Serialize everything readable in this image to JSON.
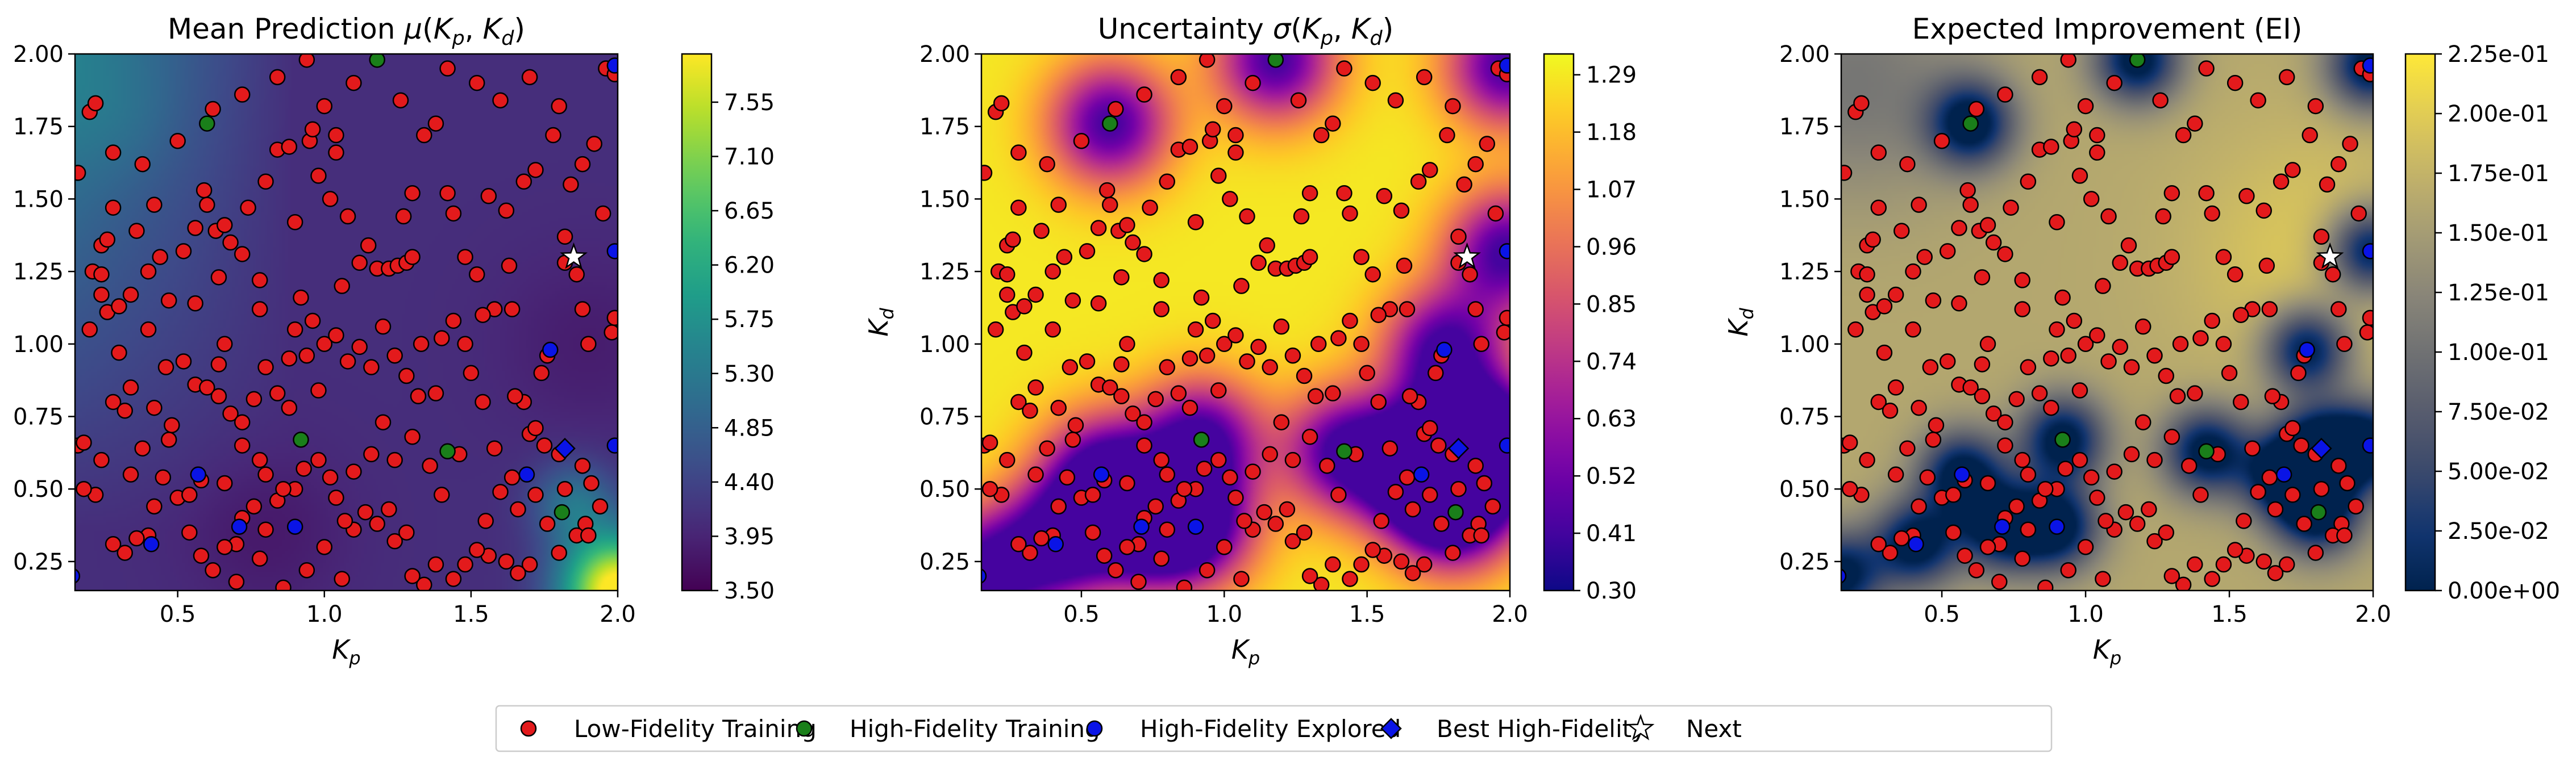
{
  "figure": {
    "legend": {
      "placement": "bottom-center",
      "items": [
        {
          "label": "Low-Fidelity Training",
          "marker": "circle",
          "color": "#e31a1c"
        },
        {
          "label": "High-Fidelity Training",
          "marker": "circle",
          "color": "#1a7f1a"
        },
        {
          "label": "High-Fidelity Explored",
          "marker": "circle",
          "color": "#0a14e6"
        },
        {
          "label": "Best High-Fidelity",
          "marker": "diamond",
          "color": "#0a14e6"
        },
        {
          "label": "Next",
          "marker": "star",
          "color": "#ffffff"
        }
      ]
    }
  },
  "chart_data": [
    {
      "type": "heatmap",
      "title": "Mean Prediction μ(Kp, Kd)",
      "title_parts": [
        "Mean Prediction ",
        "μ",
        "(",
        "K",
        "p",
        ", ",
        "K",
        "d",
        ")"
      ],
      "xlabel": "Kp",
      "ylabel": "Kd",
      "xlim": [
        0.15,
        2.0
      ],
      "ylim": [
        0.15,
        2.0
      ],
      "xticks": [
        "0.5",
        "1.0",
        "1.5",
        "2.0"
      ],
      "yticks": [
        "0.25",
        "0.50",
        "0.75",
        "1.00",
        "1.25",
        "1.50",
        "1.75",
        "2.00"
      ],
      "colormap": "viridis",
      "colorbar_ticks": [
        "3.50",
        "3.95",
        "4.40",
        "4.85",
        "5.30",
        "5.75",
        "6.20",
        "6.65",
        "7.10",
        "7.55"
      ],
      "colorbar_range": [
        3.5,
        7.95
      ]
    },
    {
      "type": "heatmap",
      "title": "Uncertainty σ(Kp, Kd)",
      "title_parts": [
        "Uncertainty ",
        "σ",
        "(",
        "K",
        "p",
        ", ",
        "K",
        "d",
        ")"
      ],
      "xlabel": "Kp",
      "ylabel": "Kd",
      "xlim": [
        0.15,
        2.0
      ],
      "ylim": [
        0.15,
        2.0
      ],
      "xticks": [
        "0.5",
        "1.0",
        "1.5",
        "2.0"
      ],
      "yticks": [
        "0.25",
        "0.50",
        "0.75",
        "1.00",
        "1.25",
        "1.50",
        "1.75",
        "2.00"
      ],
      "colormap": "plasma",
      "colorbar_ticks": [
        "0.30",
        "0.41",
        "0.52",
        "0.63",
        "0.74",
        "0.85",
        "0.96",
        "1.07",
        "1.18",
        "1.29"
      ],
      "colorbar_range": [
        0.3,
        1.33
      ]
    },
    {
      "type": "heatmap",
      "title": "Expected Improvement (EI)",
      "title_parts": [
        "Expected Improvement (EI)"
      ],
      "xlabel": "Kp",
      "ylabel": "Kd",
      "xlim": [
        0.15,
        2.0
      ],
      "ylim": [
        0.15,
        2.0
      ],
      "xticks": [
        "0.5",
        "1.0",
        "1.5",
        "2.0"
      ],
      "yticks": [
        "0.25",
        "0.50",
        "0.75",
        "1.00",
        "1.25",
        "1.50",
        "1.75",
        "2.00"
      ],
      "colormap": "cividis",
      "colorbar_ticks": [
        "0.00e+00",
        "2.50e-02",
        "5.00e-02",
        "7.50e-02",
        "1.00e-01",
        "1.25e-01",
        "1.50e-01",
        "1.75e-01",
        "2.00e-01",
        "2.25e-01"
      ],
      "colorbar_range": [
        0.0,
        0.225
      ]
    }
  ],
  "points": {
    "low_fidelity": [
      [
        0.16,
        1.59
      ],
      [
        0.2,
        1.8
      ],
      [
        0.22,
        1.83
      ],
      [
        0.28,
        1.66
      ],
      [
        0.24,
        1.34
      ],
      [
        0.26,
        1.36
      ],
      [
        0.21,
        1.25
      ],
      [
        0.24,
        1.24
      ],
      [
        0.24,
        1.17
      ],
      [
        0.26,
        1.11
      ],
      [
        0.3,
        1.13
      ],
      [
        0.34,
        1.17
      ],
      [
        0.36,
        1.39
      ],
      [
        0.4,
        1.25
      ],
      [
        0.42,
        1.48
      ],
      [
        0.44,
        1.3
      ],
      [
        0.47,
        1.15
      ],
      [
        0.52,
        1.32
      ],
      [
        0.56,
        1.4
      ],
      [
        0.59,
        1.53
      ],
      [
        0.6,
        1.48
      ],
      [
        0.63,
        1.39
      ],
      [
        0.66,
        1.41
      ],
      [
        0.64,
        1.23
      ],
      [
        0.68,
        1.35
      ],
      [
        0.72,
        1.31
      ],
      [
        0.74,
        1.47
      ],
      [
        0.78,
        1.22
      ],
      [
        0.8,
        1.56
      ],
      [
        0.84,
        1.67
      ],
      [
        0.88,
        1.68
      ],
      [
        0.9,
        1.42
      ],
      [
        0.95,
        1.7
      ],
      [
        0.96,
        1.74
      ],
      [
        1.0,
        1.82
      ],
      [
        1.04,
        1.72
      ],
      [
        1.04,
        1.66
      ],
      [
        0.98,
        1.58
      ],
      [
        1.02,
        1.5
      ],
      [
        1.08,
        1.44
      ],
      [
        1.06,
        1.2
      ],
      [
        1.12,
        1.28
      ],
      [
        1.15,
        1.34
      ],
      [
        1.18,
        1.26
      ],
      [
        1.22,
        1.26
      ],
      [
        1.25,
        1.27
      ],
      [
        1.28,
        1.28
      ],
      [
        1.3,
        1.3
      ],
      [
        1.27,
        1.44
      ],
      [
        1.3,
        1.52
      ],
      [
        1.34,
        1.72
      ],
      [
        1.38,
        1.76
      ],
      [
        1.42,
        1.52
      ],
      [
        1.44,
        1.45
      ],
      [
        1.48,
        1.3
      ],
      [
        1.52,
        1.24
      ],
      [
        1.56,
        1.51
      ],
      [
        1.63,
        1.27
      ],
      [
        1.58,
        1.12
      ],
      [
        1.54,
        1.1
      ],
      [
        1.64,
        1.12
      ],
      [
        1.62,
        1.46
      ],
      [
        1.68,
        1.56
      ],
      [
        1.72,
        1.6
      ],
      [
        1.78,
        1.72
      ],
      [
        1.84,
        1.55
      ],
      [
        1.88,
        1.62
      ],
      [
        1.92,
        1.69
      ],
      [
        1.96,
        1.95
      ],
      [
        1.99,
        1.93
      ],
      [
        1.95,
        1.45
      ],
      [
        1.82,
        1.37
      ],
      [
        1.86,
        1.24
      ],
      [
        1.82,
        1.28
      ],
      [
        1.88,
        1.12
      ],
      [
        1.9,
        1.0
      ],
      [
        1.98,
        1.04
      ],
      [
        1.99,
        1.09
      ],
      [
        1.76,
        0.96
      ],
      [
        1.74,
        0.9
      ],
      [
        1.68,
        0.8
      ],
      [
        1.65,
        0.82
      ],
      [
        1.7,
        0.69
      ],
      [
        1.75,
        0.65
      ],
      [
        1.72,
        0.71
      ],
      [
        1.8,
        0.62
      ],
      [
        1.88,
        0.58
      ],
      [
        1.91,
        0.52
      ],
      [
        1.94,
        0.44
      ],
      [
        1.89,
        0.38
      ],
      [
        1.86,
        0.34
      ],
      [
        1.8,
        0.28
      ],
      [
        1.7,
        0.24
      ],
      [
        1.66,
        0.21
      ],
      [
        1.62,
        0.25
      ],
      [
        1.56,
        0.27
      ],
      [
        1.52,
        0.29
      ],
      [
        1.48,
        0.24
      ],
      [
        1.44,
        0.19
      ],
      [
        1.38,
        0.24
      ],
      [
        1.34,
        0.17
      ],
      [
        1.3,
        0.2
      ],
      [
        1.24,
        0.32
      ],
      [
        1.28,
        0.35
      ],
      [
        1.18,
        0.38
      ],
      [
        1.14,
        0.42
      ],
      [
        1.1,
        0.36
      ],
      [
        1.07,
        0.39
      ],
      [
        1.04,
        0.47
      ],
      [
        1.02,
        0.54
      ],
      [
        0.98,
        0.6
      ],
      [
        0.93,
        0.57
      ],
      [
        0.9,
        0.5
      ],
      [
        0.84,
        0.46
      ],
      [
        0.8,
        0.55
      ],
      [
        0.76,
        0.44
      ],
      [
        0.72,
        0.4
      ],
      [
        0.7,
        0.31
      ],
      [
        0.66,
        0.3
      ],
      [
        0.62,
        0.22
      ],
      [
        0.58,
        0.27
      ],
      [
        0.54,
        0.35
      ],
      [
        0.5,
        0.47
      ],
      [
        0.45,
        0.54
      ],
      [
        0.42,
        0.44
      ],
      [
        0.4,
        0.34
      ],
      [
        0.36,
        0.33
      ],
      [
        0.32,
        0.28
      ],
      [
        0.28,
        0.31
      ],
      [
        0.22,
        0.48
      ],
      [
        0.18,
        0.5
      ],
      [
        0.16,
        0.65
      ],
      [
        0.18,
        0.66
      ],
      [
        0.24,
        0.6
      ],
      [
        0.28,
        0.8
      ],
      [
        0.32,
        0.77
      ],
      [
        0.34,
        0.85
      ],
      [
        0.38,
        0.64
      ],
      [
        0.42,
        0.78
      ],
      [
        0.48,
        0.72
      ],
      [
        0.52,
        0.94
      ],
      [
        0.56,
        0.86
      ],
      [
        0.6,
        0.85
      ],
      [
        0.64,
        0.82
      ],
      [
        0.64,
        0.93
      ],
      [
        0.68,
        0.76
      ],
      [
        0.72,
        0.73
      ],
      [
        0.76,
        0.81
      ],
      [
        0.8,
        0.92
      ],
      [
        0.84,
        0.83
      ],
      [
        0.88,
        0.95
      ],
      [
        0.9,
        1.05
      ],
      [
        0.92,
        1.16
      ],
      [
        0.96,
        1.08
      ],
      [
        1.0,
        1.0
      ],
      [
        1.04,
        1.03
      ],
      [
        1.08,
        0.94
      ],
      [
        1.12,
        0.99
      ],
      [
        1.16,
        0.92
      ],
      [
        1.2,
        1.06
      ],
      [
        1.24,
        0.96
      ],
      [
        1.28,
        0.89
      ],
      [
        1.32,
        0.82
      ],
      [
        1.38,
        0.83
      ],
      [
        1.4,
        1.02
      ],
      [
        1.44,
        1.08
      ],
      [
        1.48,
        1.0
      ],
      [
        1.5,
        0.9
      ],
      [
        1.54,
        0.8
      ],
      [
        1.58,
        0.64
      ],
      [
        1.6,
        0.49
      ],
      [
        1.64,
        0.54
      ],
      [
        1.66,
        0.43
      ],
      [
        1.4,
        0.48
      ],
      [
        1.36,
        0.58
      ],
      [
        1.3,
        0.68
      ],
      [
        1.24,
        0.6
      ],
      [
        1.2,
        0.73
      ],
      [
        1.16,
        0.62
      ],
      [
        1.1,
        0.56
      ],
      [
        0.98,
        0.84
      ],
      [
        0.94,
        0.96
      ],
      [
        0.86,
        0.5
      ],
      [
        0.78,
        0.6
      ],
      [
        0.72,
        0.65
      ],
      [
        0.66,
        0.52
      ],
      [
        0.58,
        0.53
      ],
      [
        0.54,
        0.48
      ],
      [
        0.47,
        0.67
      ],
      [
        0.34,
        0.55
      ],
      [
        0.62,
        0.12
      ],
      [
        0.7,
        0.18
      ],
      [
        0.78,
        0.26
      ],
      [
        0.86,
        0.16
      ],
      [
        0.94,
        0.22
      ],
      [
        1.0,
        0.3
      ],
      [
        1.06,
        0.19
      ],
      [
        0.8,
        0.36
      ],
      [
        0.88,
        0.78
      ],
      [
        1.22,
        0.43
      ],
      [
        1.33,
        1.0
      ],
      [
        1.46,
        0.62
      ],
      [
        1.55,
        0.39
      ],
      [
        1.72,
        0.48
      ],
      [
        1.76,
        0.38
      ],
      [
        1.82,
        0.5
      ],
      [
        1.9,
        0.34
      ],
      [
        0.56,
        1.14
      ],
      [
        0.66,
        1.0
      ],
      [
        0.78,
        1.12
      ],
      [
        0.46,
        0.92
      ],
      [
        0.4,
        1.05
      ],
      [
        0.3,
        0.97
      ],
      [
        0.2,
        1.05
      ],
      [
        0.28,
        1.47
      ],
      [
        0.38,
        1.62
      ],
      [
        0.5,
        1.7
      ],
      [
        0.62,
        1.81
      ],
      [
        0.72,
        1.86
      ],
      [
        0.84,
        1.92
      ],
      [
        0.94,
        1.98
      ],
      [
        1.1,
        1.9
      ],
      [
        1.26,
        1.84
      ],
      [
        1.42,
        1.95
      ],
      [
        1.52,
        1.9
      ],
      [
        1.6,
        1.84
      ],
      [
        1.7,
        1.92
      ],
      [
        1.8,
        1.82
      ]
    ],
    "high_fidelity_training": [
      [
        0.6,
        1.76
      ],
      [
        1.18,
        1.98
      ],
      [
        0.92,
        0.67
      ],
      [
        1.42,
        0.63
      ],
      [
        1.81,
        0.42
      ]
    ],
    "high_fidelity_explored": [
      [
        0.57,
        0.55
      ],
      [
        0.41,
        0.31
      ],
      [
        0.71,
        0.37
      ],
      [
        0.9,
        0.37
      ],
      [
        1.69,
        0.55
      ],
      [
        1.77,
        0.98
      ],
      [
        1.99,
        0.65
      ],
      [
        1.99,
        1.32
      ],
      [
        1.99,
        1.96
      ],
      [
        0.14,
        0.2
      ]
    ],
    "best_high_fidelity": [
      [
        1.82,
        0.64
      ]
    ],
    "next": [
      [
        1.85,
        1.3
      ]
    ]
  }
}
